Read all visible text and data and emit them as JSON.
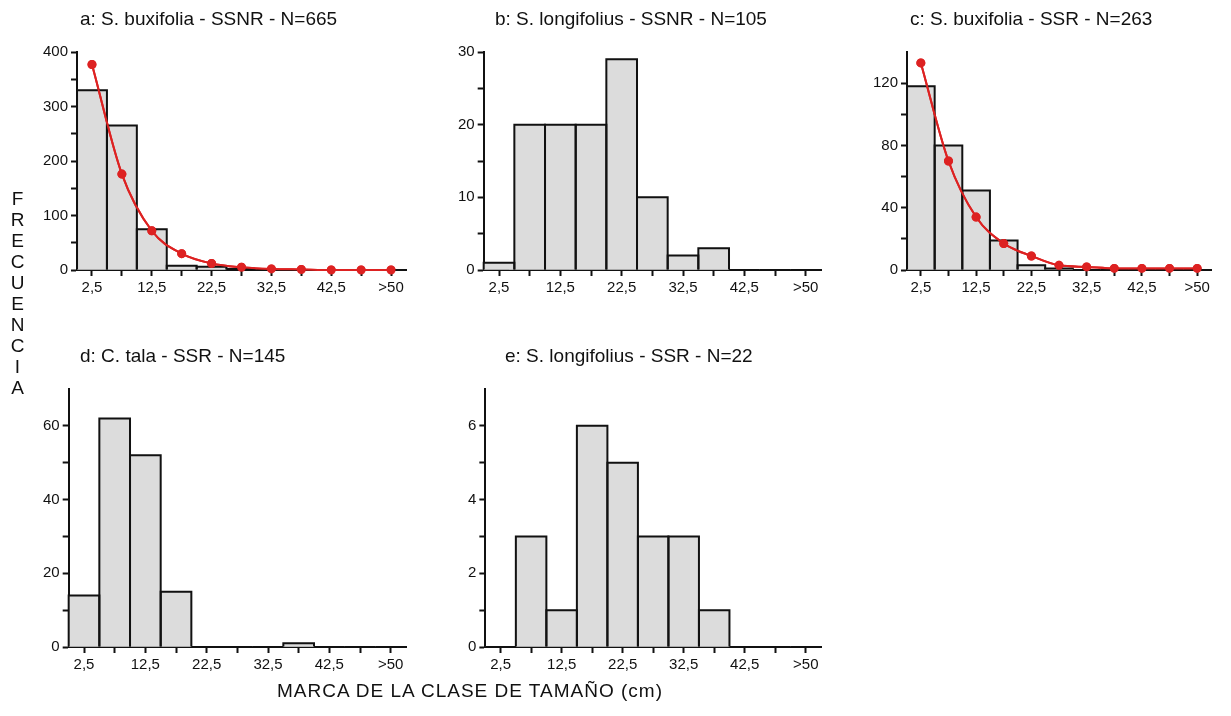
{
  "chart_data": [
    {
      "type": "bar",
      "title": "a: S. buxifolia - SSNR - N=665",
      "ylabel": "FRECUENCIA",
      "marker": "circle",
      "categories": [
        "2,5",
        null,
        "12,5",
        null,
        "22,5",
        null,
        "32,5",
        null,
        "42,5",
        null,
        ">50"
      ],
      "ylim": [
        0,
        400
      ],
      "yticks": [
        0,
        {
          "value": 50,
          "label": null
        },
        100,
        {
          "value": 150,
          "label": null
        },
        200,
        {
          "value": 250,
          "label": null
        },
        300,
        {
          "value": 350,
          "label": null
        },
        400
      ],
      "series": [
        {
          "color": "#dcdcdc",
          "values": [
            330,
            265,
            75,
            8,
            6,
            2,
            0,
            0,
            0,
            0,
            0
          ]
        },
        {
          "type": "line",
          "color": "#dd2222",
          "values": [
            377,
            176,
            72,
            30,
            12,
            5,
            2,
            1,
            0,
            0,
            0
          ]
        }
      ]
    },
    {
      "type": "bar",
      "title": "b: S. longifolius - SSNR - N=105",
      "categories": [
        "2,5",
        null,
        "12,5",
        null,
        "22,5",
        null,
        "32,5",
        null,
        "42,5",
        null,
        ">50"
      ],
      "ylim": [
        0,
        30
      ],
      "yticks": [
        0,
        {
          "value": 5,
          "label": null
        },
        10,
        {
          "value": 15,
          "label": null
        },
        20,
        {
          "value": 25,
          "label": null
        },
        30
      ],
      "series": [
        {
          "color": "#dcdcdc",
          "values": [
            1,
            20,
            20,
            20,
            29,
            10,
            2,
            3,
            0,
            0,
            0
          ]
        }
      ]
    },
    {
      "type": "bar",
      "title": "c: S. buxifolia - SSR - N=263",
      "marker": "circle",
      "categories": [
        "2,5",
        null,
        "12,5",
        null,
        "22,5",
        null,
        "32,5",
        null,
        "42,5",
        null,
        ">50"
      ],
      "ylim": [
        0,
        140
      ],
      "yticks": [
        0,
        {
          "value": 20,
          "label": null
        },
        40,
        {
          "value": 60,
          "label": null
        },
        80,
        {
          "value": 100,
          "label": null
        },
        120
      ],
      "series": [
        {
          "color": "#dcdcdc",
          "values": [
            118,
            80,
            51,
            19,
            3,
            1,
            0,
            0,
            0,
            0,
            0
          ]
        },
        {
          "type": "line",
          "color": "#dd2222",
          "values": [
            133,
            70,
            34,
            17,
            9,
            3,
            2,
            1,
            1,
            1,
            1
          ]
        }
      ]
    },
    {
      "type": "bar",
      "title": "d: C. tala - SSR - N=145",
      "xlabel": "MARCA DE LA CLASE DE TAMAÑO (cm)",
      "categories": [
        "2,5",
        null,
        "12,5",
        null,
        "22,5",
        null,
        "32,5",
        null,
        "42,5",
        null,
        ">50"
      ],
      "ylim": [
        0,
        70
      ],
      "yticks": [
        0,
        {
          "value": 10,
          "label": null
        },
        20,
        {
          "value": 30,
          "label": null
        },
        40,
        {
          "value": 50,
          "label": null
        },
        60
      ],
      "series": [
        {
          "color": "#dcdcdc",
          "values": [
            14,
            62,
            52,
            15,
            0,
            0,
            0,
            1,
            0,
            0,
            0
          ]
        }
      ]
    },
    {
      "type": "bar",
      "title": "e: S. longifolius - SSR - N=22",
      "categories": [
        "2,5",
        null,
        "12,5",
        null,
        "22,5",
        null,
        "32,5",
        null,
        "42,5",
        null,
        ">50"
      ],
      "ylim": [
        0,
        7
      ],
      "yticks": [
        0,
        {
          "value": 1,
          "label": null
        },
        2,
        {
          "value": 3,
          "label": null
        },
        4,
        {
          "value": 5,
          "label": null
        },
        6
      ],
      "series": [
        {
          "color": "#dcdcdc",
          "values": [
            0,
            3,
            1,
            6,
            5,
            3,
            3,
            1,
            0,
            0,
            0
          ]
        }
      ]
    }
  ]
}
